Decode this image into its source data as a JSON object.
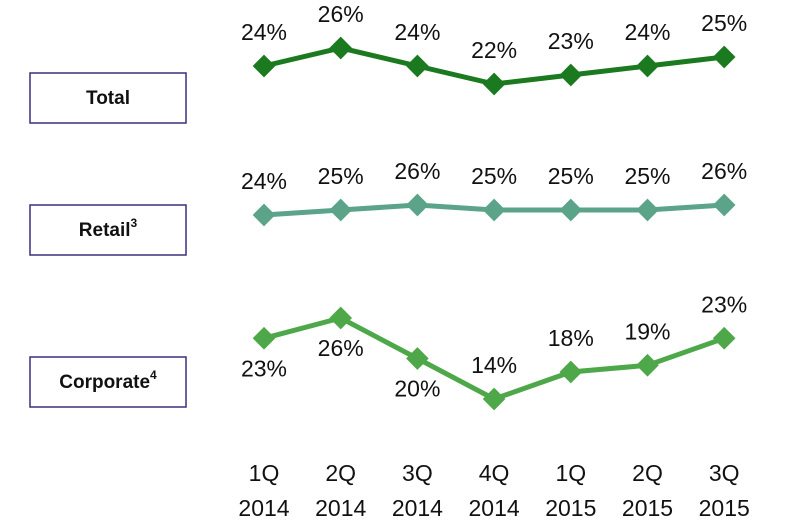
{
  "chart_data": {
    "type": "line",
    "categories": [
      "1Q 2014",
      "2Q 2014",
      "3Q 2014",
      "4Q 2014",
      "1Q 2015",
      "2Q 2015",
      "3Q 2015"
    ],
    "series": [
      {
        "name": "Total",
        "color": "#1b7a1f",
        "values": [
          24,
          26,
          24,
          22,
          23,
          24,
          25
        ],
        "value_labels": [
          "24%",
          "26%",
          "24%",
          "22%",
          "23%",
          "24%",
          "25%"
        ]
      },
      {
        "name": "Retail",
        "note": "3",
        "color": "#5ba48a",
        "values": [
          24,
          25,
          26,
          25,
          25,
          25,
          26
        ],
        "value_labels": [
          "24%",
          "25%",
          "26%",
          "25%",
          "25%",
          "25%",
          "26%"
        ]
      },
      {
        "name": "Corporate",
        "note": "4",
        "color": "#4ea84a",
        "values": [
          23,
          26,
          20,
          14,
          18,
          19,
          23
        ],
        "value_labels": [
          "23%",
          "26%",
          "20%",
          "14%",
          "18%",
          "19%",
          "23%"
        ]
      }
    ]
  }
}
